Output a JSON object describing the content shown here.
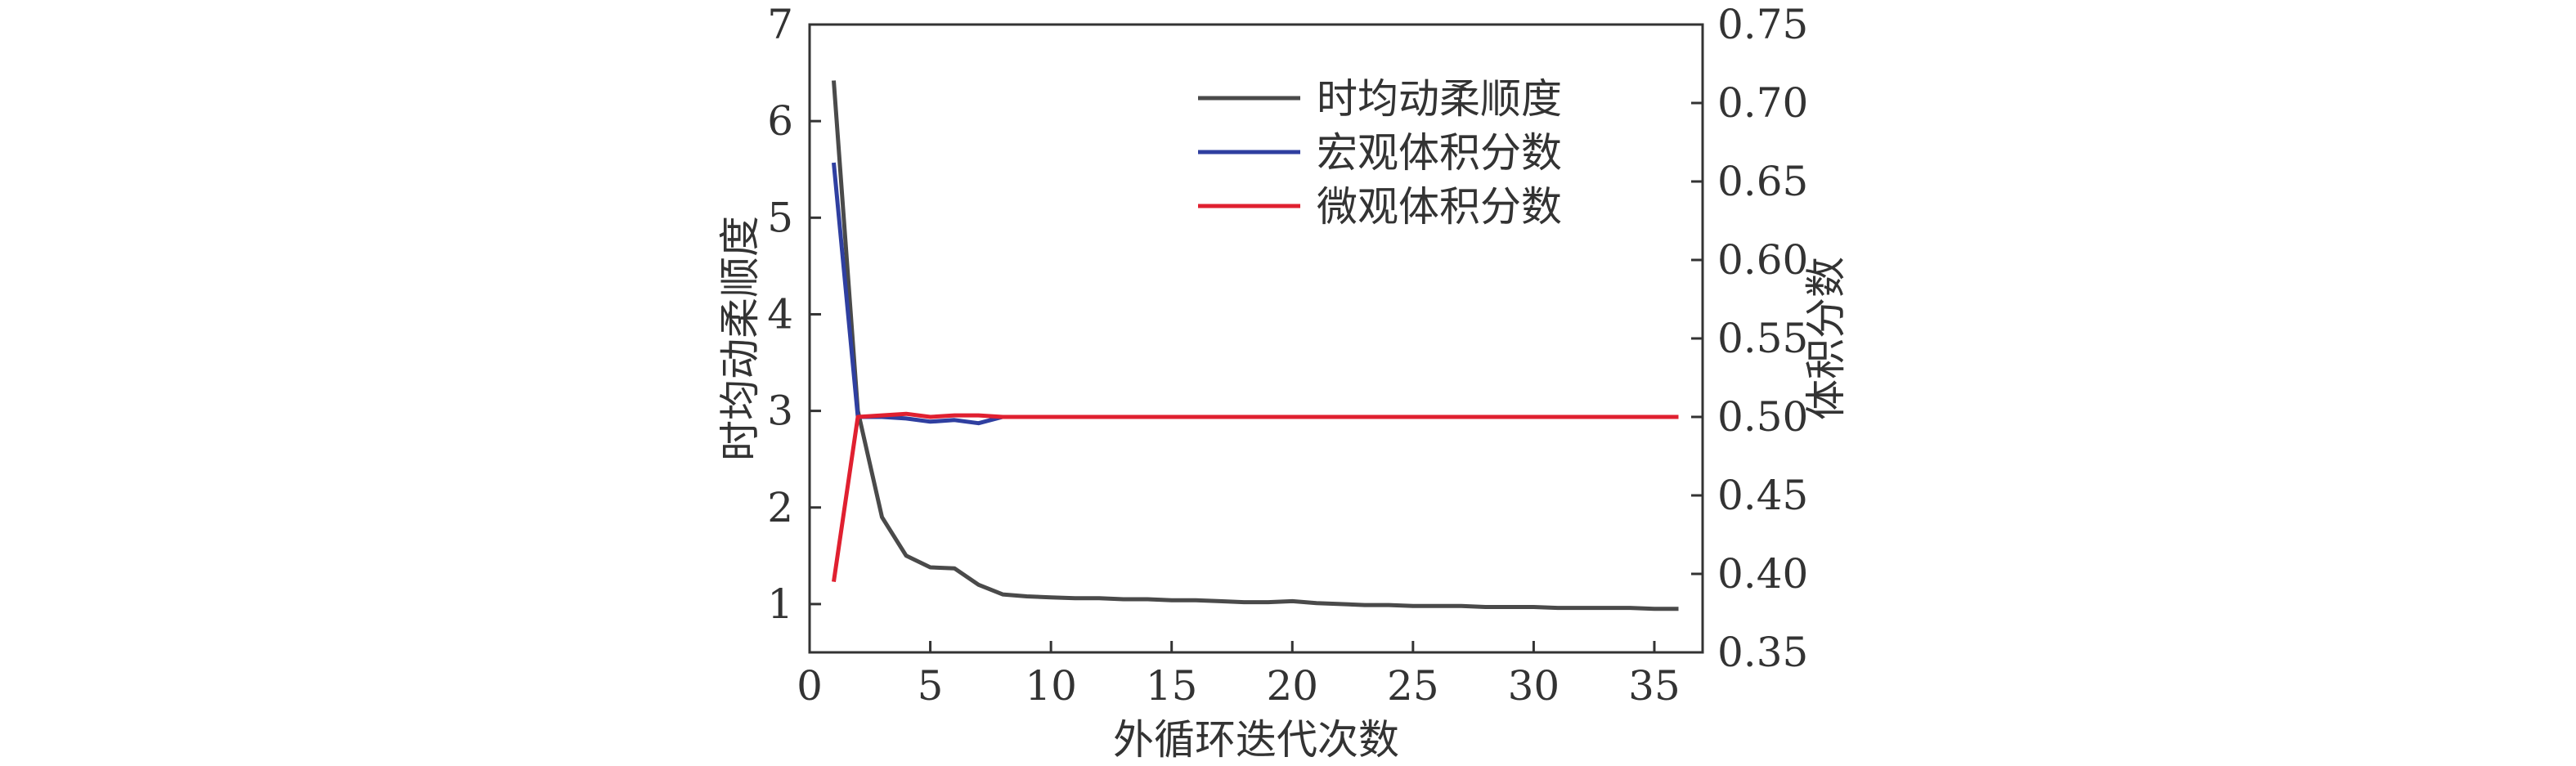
{
  "chart_data": {
    "type": "line",
    "title": "",
    "xlabel": "外循环迭代次数",
    "ylabel_left": "时均动柔顺度",
    "ylabel_right": "体积分数",
    "xlim": [
      0,
      37
    ],
    "ylim_left": [
      0.5,
      7
    ],
    "ylim_right": [
      0.35,
      0.75
    ],
    "x_ticks": [
      0,
      5,
      10,
      15,
      20,
      25,
      30,
      35
    ],
    "y_left_ticks": [
      1,
      2,
      3,
      4,
      5,
      6,
      7
    ],
    "y_right_ticks": [
      0.35,
      0.4,
      0.45,
      0.5,
      0.55,
      0.6,
      0.65,
      0.7,
      0.75
    ],
    "grid": false,
    "legend_position": "top-right",
    "series": [
      {
        "name": "时均动柔顺度",
        "axis": "left",
        "color": "#4a4a4a",
        "x": [
          1,
          2,
          3,
          4,
          5,
          6,
          7,
          8,
          9,
          10,
          11,
          12,
          13,
          14,
          15,
          16,
          17,
          18,
          19,
          20,
          21,
          22,
          23,
          24,
          25,
          26,
          27,
          28,
          29,
          30,
          31,
          32,
          33,
          34,
          35,
          36
        ],
        "y": [
          6.42,
          3.0,
          1.9,
          1.5,
          1.38,
          1.37,
          1.2,
          1.1,
          1.08,
          1.07,
          1.06,
          1.06,
          1.05,
          1.05,
          1.04,
          1.04,
          1.03,
          1.02,
          1.02,
          1.03,
          1.01,
          1.0,
          0.99,
          0.99,
          0.98,
          0.98,
          0.98,
          0.97,
          0.97,
          0.97,
          0.96,
          0.96,
          0.96,
          0.96,
          0.95,
          0.95
        ]
      },
      {
        "name": "宏观体积分数",
        "axis": "right",
        "color": "#2f3fa0",
        "x": [
          1,
          2,
          3,
          4,
          5,
          6,
          7,
          8
        ],
        "y": [
          0.662,
          0.5,
          0.5,
          0.499,
          0.497,
          0.498,
          0.496,
          0.5
        ]
      },
      {
        "name": "微观体积分数",
        "axis": "right",
        "color": "#e02030",
        "x": [
          1,
          2,
          3,
          4,
          5,
          6,
          7,
          8,
          9,
          10,
          11,
          12,
          13,
          14,
          15,
          16,
          17,
          18,
          19,
          20,
          21,
          22,
          23,
          24,
          25,
          26,
          27,
          28,
          29,
          30,
          31,
          32,
          33,
          34,
          35,
          36
        ],
        "y": [
          0.395,
          0.5,
          0.501,
          0.502,
          0.5,
          0.501,
          0.501,
          0.5,
          0.5,
          0.5,
          0.5,
          0.5,
          0.5,
          0.5,
          0.5,
          0.5,
          0.5,
          0.5,
          0.5,
          0.5,
          0.5,
          0.5,
          0.5,
          0.5,
          0.5,
          0.5,
          0.5,
          0.5,
          0.5,
          0.5,
          0.5,
          0.5,
          0.5,
          0.5,
          0.5,
          0.5
        ]
      }
    ]
  }
}
